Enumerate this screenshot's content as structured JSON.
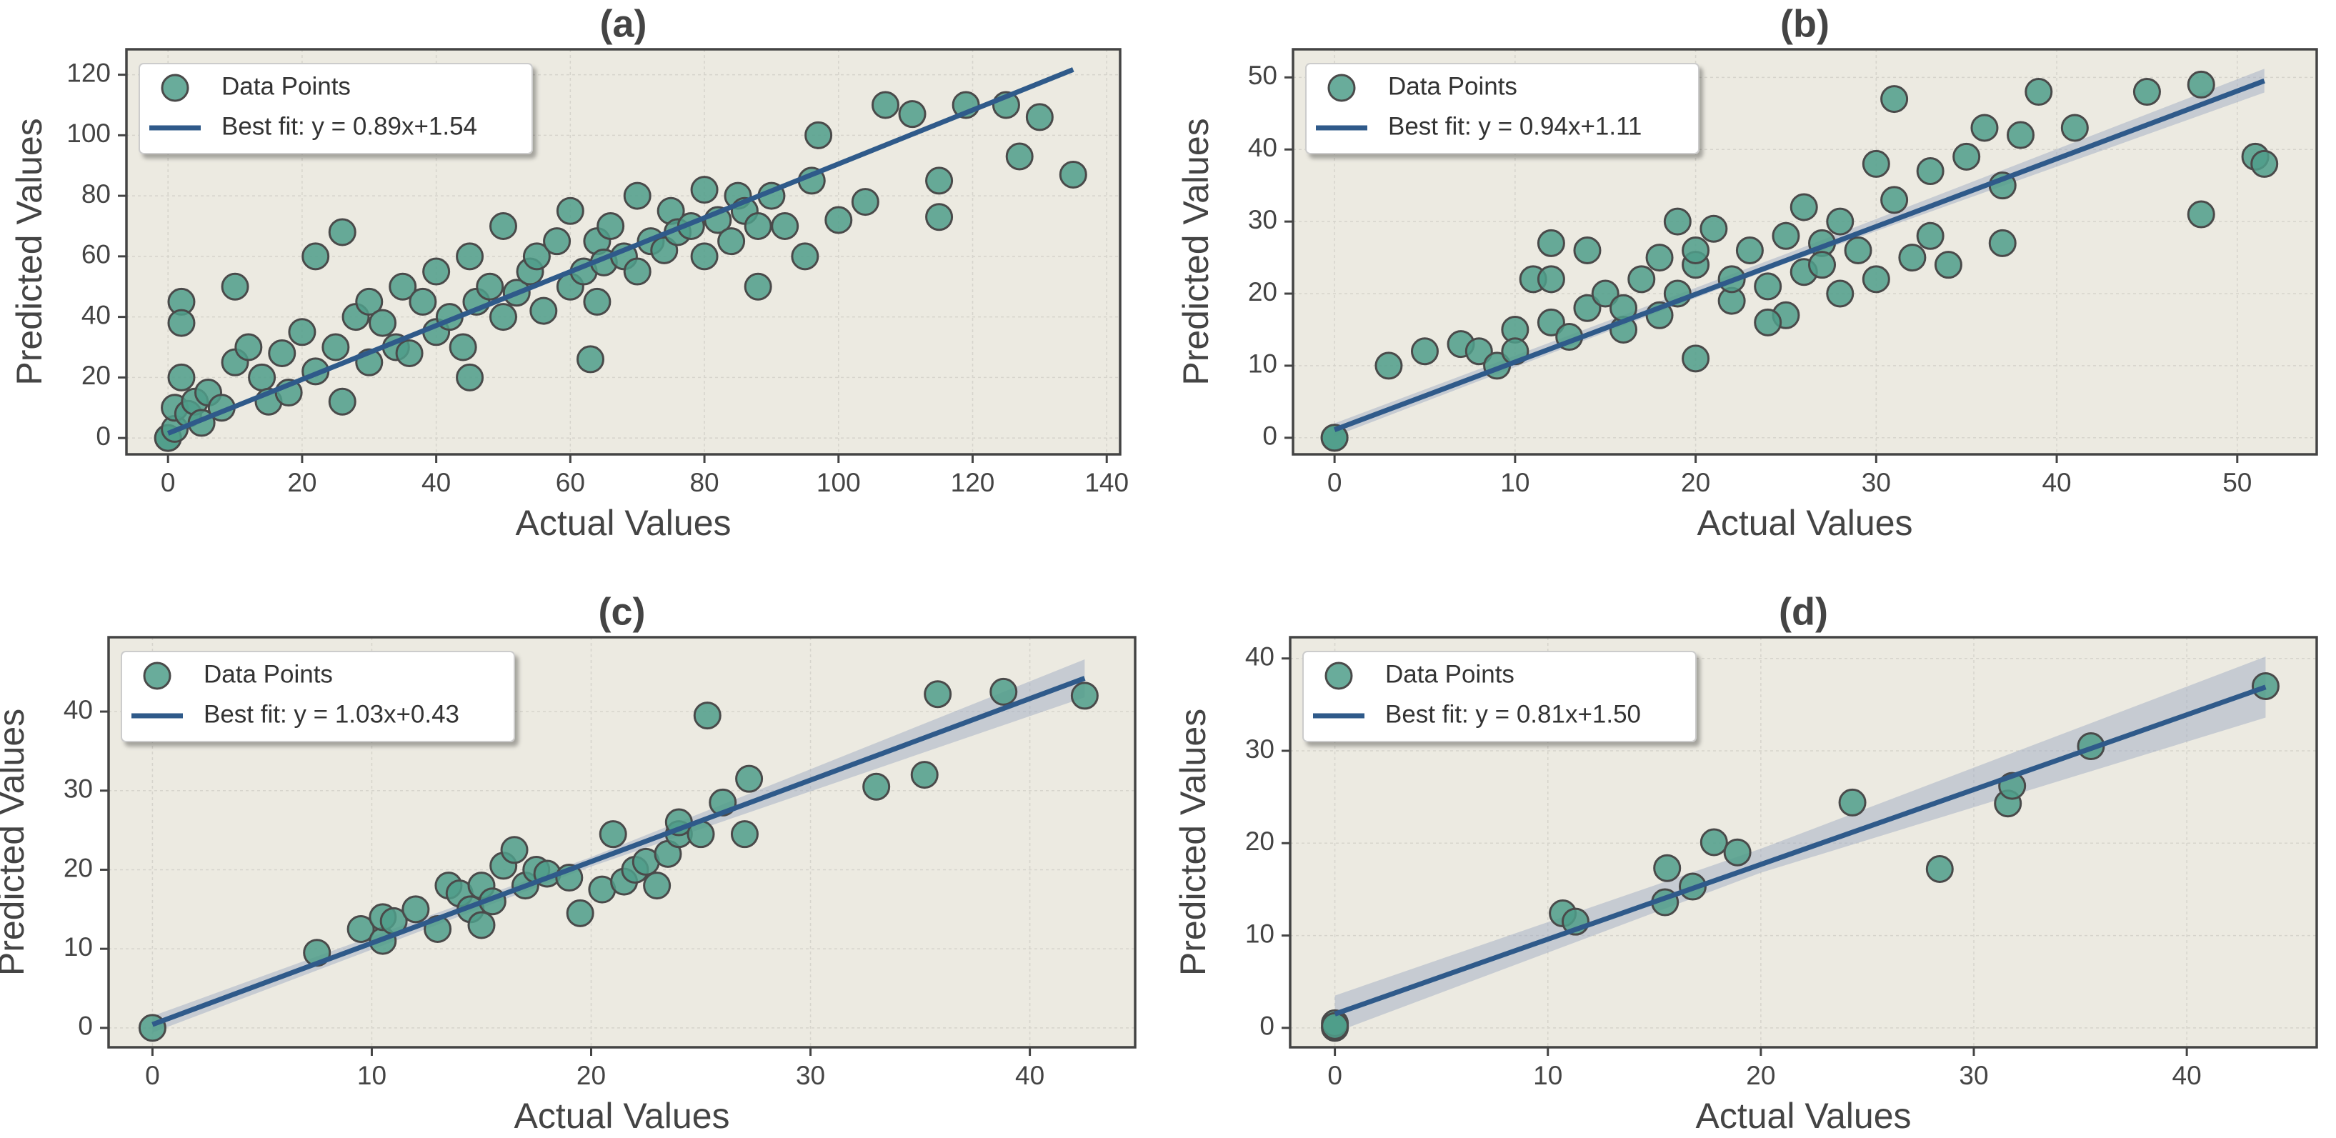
{
  "chart_data": [
    {
      "type": "scatter",
      "title": "(a)",
      "xlabel": "Actual Values",
      "ylabel": "Predicted Values",
      "grid": true,
      "legend": "upper left",
      "xlim": [
        -6.2,
        142
      ],
      "ylim": [
        -5.4,
        128.4
      ],
      "xticks": [
        0,
        20,
        40,
        60,
        80,
        100,
        120,
        140
      ],
      "yticks": [
        0,
        20,
        40,
        60,
        80,
        100,
        120
      ],
      "series": [
        {
          "name": "Data Points",
          "color": "#4f9e8a",
          "x": [
            0,
            0,
            1,
            1,
            2,
            2,
            3,
            4,
            5,
            6,
            8,
            10,
            12,
            14,
            15,
            17,
            18,
            20,
            22,
            22,
            25,
            26,
            28,
            30,
            30,
            32,
            34,
            35,
            36,
            38,
            40,
            40,
            42,
            44,
            45,
            46,
            48,
            50,
            50,
            52,
            54,
            55,
            56,
            58,
            60,
            60,
            62,
            63,
            64,
            65,
            66,
            68,
            70,
            70,
            72,
            74,
            75,
            76,
            78,
            80,
            80,
            82,
            84,
            85,
            86,
            88,
            90,
            92,
            95,
            96,
            97,
            100,
            104,
            107,
            111,
            115,
            115,
            119,
            125,
            127,
            130,
            135,
            2,
            10,
            26,
            45,
            64,
            88
          ],
          "values": [
            0,
            0,
            3,
            10,
            20,
            45,
            8,
            12,
            5,
            15,
            10,
            25,
            30,
            20,
            12,
            28,
            15,
            35,
            22,
            60,
            30,
            68,
            40,
            25,
            45,
            38,
            30,
            50,
            28,
            45,
            35,
            55,
            40,
            30,
            60,
            45,
            50,
            40,
            70,
            48,
            55,
            60,
            42,
            65,
            50,
            75,
            55,
            26,
            65,
            58,
            70,
            60,
            55,
            80,
            65,
            62,
            75,
            68,
            70,
            60,
            82,
            72,
            65,
            80,
            75,
            70,
            80,
            70,
            60,
            85,
            100,
            72,
            78,
            110,
            107,
            73,
            85,
            110,
            110,
            93,
            106,
            87,
            38,
            50,
            12,
            20,
            45,
            50
          ]
        }
      ],
      "fit": {
        "name": "Best fit: y = 0.89x+1.54",
        "color": "#2f5a8a",
        "x": [
          0,
          135
        ],
        "values": [
          1.54,
          121.69
        ]
      }
    },
    {
      "type": "scatter",
      "title": "(b)",
      "xlabel": "Actual Values",
      "ylabel": "Predicted Values",
      "grid": true,
      "legend": "upper left",
      "xlim": [
        -2.3,
        54.4
      ],
      "ylim": [
        -2.3,
        53.9
      ],
      "xticks": [
        0,
        10,
        20,
        30,
        40,
        50
      ],
      "yticks": [
        0,
        10,
        20,
        30,
        40,
        50
      ],
      "series": [
        {
          "name": "Data Points",
          "color": "#4f9e8a",
          "x": [
            0,
            0,
            3,
            5,
            7,
            8,
            9,
            10,
            10,
            11,
            12,
            12,
            13,
            14,
            14,
            15,
            16,
            17,
            18,
            18,
            19,
            19,
            20,
            20,
            21,
            22,
            22,
            23,
            24,
            25,
            25,
            26,
            27,
            28,
            28,
            29,
            30,
            30,
            31,
            31,
            32,
            33,
            33,
            34,
            35,
            36,
            37,
            37,
            38,
            39,
            41,
            45,
            48,
            48,
            51,
            51.5,
            12,
            16,
            24,
            27,
            20,
            26
          ],
          "values": [
            0,
            0,
            10,
            12,
            13,
            12,
            10,
            15,
            12,
            22,
            27,
            16,
            14,
            26,
            18,
            20,
            15,
            22,
            17,
            25,
            30,
            20,
            11,
            24,
            29,
            19,
            22,
            26,
            21,
            17,
            28,
            23,
            27,
            20,
            30,
            26,
            38,
            22,
            47,
            33,
            25,
            37,
            28,
            24,
            39,
            43,
            35,
            27,
            42,
            48,
            43,
            48,
            31,
            49,
            39,
            38,
            22,
            18,
            16,
            24,
            26,
            32
          ]
        }
      ],
      "fit": {
        "name": "Best fit: y = 0.94x+1.11",
        "color": "#2f5a8a",
        "x": [
          0,
          51.5
        ],
        "values": [
          1.11,
          49.52
        ]
      },
      "band": {
        "x": [
          0,
          25,
          51.5
        ],
        "lower": [
          0.2,
          24.2,
          47.9
        ],
        "upper": [
          2.0,
          25.5,
          51.2
        ]
      }
    },
    {
      "type": "scatter",
      "title": "(c)",
      "xlabel": "Actual Values",
      "ylabel": "Predicted Values",
      "grid": true,
      "legend": "upper left",
      "xlim": [
        -2.0,
        44.8
      ],
      "ylim": [
        -2.45,
        49.4
      ],
      "xticks": [
        0,
        10,
        20,
        30,
        40
      ],
      "yticks": [
        0,
        10,
        20,
        30,
        40
      ],
      "series": [
        {
          "name": "Data Points",
          "color": "#4f9e8a",
          "x": [
            0,
            7.5,
            9.5,
            10.5,
            10.5,
            11,
            12,
            13,
            13.5,
            14,
            14.5,
            15,
            15,
            15.5,
            16,
            16.5,
            17,
            17.5,
            18,
            19,
            19.5,
            20.5,
            21,
            21.5,
            22,
            22.5,
            23,
            23.5,
            24,
            24,
            25,
            25.3,
            26,
            27,
            27.2,
            33,
            35.2,
            35.8,
            38.8,
            42.5
          ],
          "values": [
            0,
            9.5,
            12.5,
            11,
            14,
            13.5,
            15,
            12.5,
            18,
            17,
            15,
            13,
            18,
            16,
            20.5,
            22.5,
            18,
            20,
            19.5,
            19,
            14.5,
            17.5,
            24.5,
            18.5,
            20,
            21,
            18,
            22,
            24.5,
            26,
            24.5,
            39.5,
            28.5,
            24.5,
            31.5,
            30.5,
            32,
            42.2,
            42.5,
            42
          ]
        }
      ],
      "fit": {
        "name": "Best fit: y = 1.03x+0.43",
        "color": "#2f5a8a",
        "x": [
          0,
          42.5
        ],
        "values": [
          0.43,
          44.21
        ]
      },
      "band": {
        "x": [
          0,
          20,
          42.5
        ],
        "lower": [
          -0.6,
          20.4,
          41.8
        ],
        "upper": [
          1.5,
          21.6,
          46.6
        ]
      }
    },
    {
      "type": "scatter",
      "title": "(d)",
      "xlabel": "Actual Values",
      "ylabel": "Predicted Values",
      "grid": true,
      "legend": "upper left",
      "xlim": [
        -2.1,
        46.1
      ],
      "ylim": [
        -2.1,
        42.3
      ],
      "xticks": [
        0,
        10,
        20,
        30,
        40
      ],
      "yticks": [
        0,
        10,
        20,
        30,
        40
      ],
      "series": [
        {
          "name": "Data Points",
          "color": "#4f9e8a",
          "x": [
            0,
            0,
            0,
            10.7,
            11.3,
            15.5,
            15.6,
            16.8,
            17.8,
            18.9,
            24.3,
            28.4,
            31.6,
            31.8,
            35.5,
            43.7
          ],
          "values": [
            0,
            0.5,
            0.2,
            12.4,
            11.5,
            13.6,
            17.3,
            15.3,
            20.1,
            19,
            24.4,
            17.2,
            24.3,
            26.2,
            30.5,
            37
          ]
        }
      ],
      "fit": {
        "name": "Best fit: y = 0.81x+1.50",
        "color": "#2f5a8a",
        "x": [
          0,
          43.7
        ],
        "values": [
          1.5,
          36.9
        ]
      },
      "band": {
        "x": [
          0,
          20,
          43.7
        ],
        "lower": [
          -0.5,
          16.8,
          33.6
        ],
        "upper": [
          3.5,
          19.4,
          40.2
        ]
      }
    }
  ]
}
